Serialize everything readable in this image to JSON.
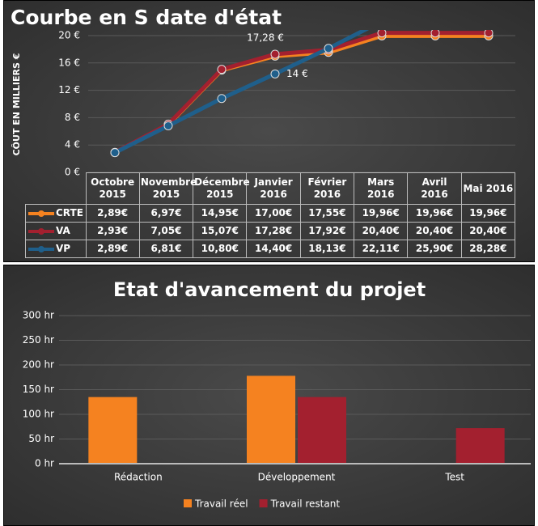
{
  "chart_data": [
    {
      "type": "line",
      "title": "Courbe en S date d'état",
      "y_label": "CÔUT EN MILLIERS €",
      "categories": [
        "Octobre 2015",
        "Novembre 2015",
        "Décembre 2015",
        "Janvier 2016",
        "Février 2016",
        "Mars 2016",
        "Avril 2016",
        "Mai 2016"
      ],
      "ylim": [
        0,
        20
      ],
      "yticks": [
        {
          "value": 0,
          "label": "0 €"
        },
        {
          "value": 4,
          "label": "4 €"
        },
        {
          "value": 8,
          "label": "8 €"
        },
        {
          "value": 12,
          "label": "12 €"
        },
        {
          "value": 16,
          "label": "16 €"
        },
        {
          "value": 20,
          "label": "20 €"
        }
      ],
      "grid": true,
      "series": [
        {
          "name": "CRTE",
          "color": "#f58220",
          "values": [
            2.89,
            6.97,
            14.95,
            17.0,
            17.55,
            19.96,
            19.96,
            19.96
          ],
          "value_labels": [
            "2,89€",
            "6,97€",
            "14,95€",
            "17,00€",
            "17,55€",
            "19,96€",
            "19,96€",
            "19,96€"
          ]
        },
        {
          "name": "VA",
          "color": "#a3202f",
          "values": [
            2.93,
            7.05,
            15.07,
            17.28,
            17.92,
            20.4,
            20.4,
            20.4
          ],
          "value_labels": [
            "2,93€",
            "7,05€",
            "15,07€",
            "17,28€",
            "17,92€",
            "20,40€",
            "20,40€",
            "20,40€"
          ],
          "point_labels": [
            null,
            null,
            null,
            "17,28 €",
            null,
            null,
            null,
            null
          ]
        },
        {
          "name": "VP",
          "color": "#1f5f8b",
          "values": [
            2.89,
            6.81,
            10.8,
            14.4,
            18.13,
            22.11,
            25.9,
            28.28
          ],
          "value_labels": [
            "2,89€",
            "6,81€",
            "10,80€",
            "14,40€",
            "18,13€",
            "22,11€",
            "25,90€",
            "28,28€"
          ],
          "point_labels": [
            null,
            null,
            null,
            "14 €",
            null,
            null,
            null,
            null
          ]
        }
      ]
    },
    {
      "type": "bar",
      "title": "Etat d'avancement du projet",
      "categories": [
        "Rédaction",
        "Développement",
        "Test"
      ],
      "ylim": [
        0,
        300
      ],
      "yticks": [
        {
          "value": 0,
          "label": "0 hr"
        },
        {
          "value": 50,
          "label": "50 hr"
        },
        {
          "value": 100,
          "label": "100 hr"
        },
        {
          "value": 150,
          "label": "150 hr"
        },
        {
          "value": 200,
          "label": "200 hr"
        },
        {
          "value": 250,
          "label": "250 hr"
        },
        {
          "value": 300,
          "label": "300 hr"
        }
      ],
      "grid": true,
      "series": [
        {
          "name": "Travail réel",
          "color": "#f58220",
          "values": [
            135,
            178,
            0
          ]
        },
        {
          "name": "Travail restant",
          "color": "#a3202f",
          "values": [
            0,
            135,
            72
          ]
        }
      ]
    }
  ]
}
